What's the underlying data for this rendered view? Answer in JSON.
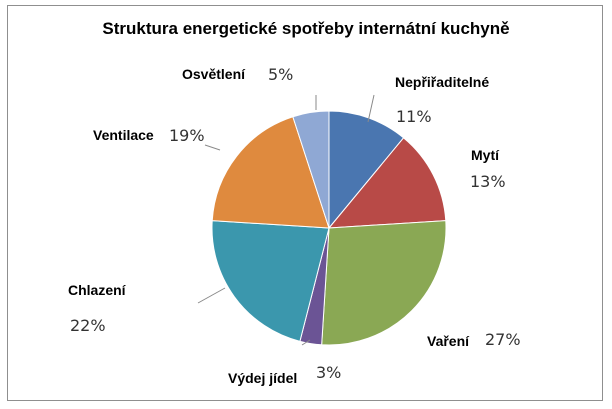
{
  "chart_data": {
    "type": "pie",
    "title": "Struktura energetické spotřeby internátní kuchyně",
    "categories": [
      "Nepřiřaditelné",
      "Mytí",
      "Vaření",
      "Výdej jídel",
      "Chlazení",
      "Ventilace",
      "Osvětlení"
    ],
    "values": [
      11,
      13,
      27,
      3,
      22,
      19,
      5
    ],
    "labels": [
      "11%",
      "13%",
      "27%",
      "3%",
      "22%",
      "19%",
      "5%"
    ],
    "colors": [
      "#4a76b0",
      "#b84a47",
      "#8aa854",
      "#6b5495",
      "#3b97ad",
      "#df8a3e",
      "#8fa8d4"
    ],
    "legend": "none"
  }
}
